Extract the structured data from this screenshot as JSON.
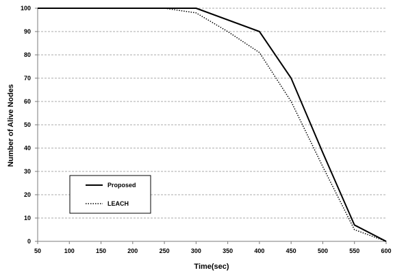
{
  "chart_data": {
    "type": "line",
    "title": "",
    "xlabel": "Time(sec)",
    "ylabel": "Number of Alive Nodes",
    "xlim": [
      50,
      600
    ],
    "ylim": [
      0,
      100
    ],
    "xticks": [
      50,
      100,
      150,
      200,
      250,
      300,
      350,
      400,
      450,
      500,
      550,
      600
    ],
    "yticks": [
      0,
      10,
      20,
      30,
      40,
      50,
      60,
      70,
      80,
      90,
      100
    ],
    "grid": "horizontal dashed",
    "legend_position": "lower-left",
    "series": [
      {
        "name": "Proposed",
        "style": "solid",
        "color": "#000000",
        "points": [
          [
            50,
            100
          ],
          [
            100,
            100
          ],
          [
            150,
            100
          ],
          [
            200,
            100
          ],
          [
            250,
            100
          ],
          [
            300,
            100
          ],
          [
            350,
            95
          ],
          [
            400,
            90
          ],
          [
            450,
            70
          ],
          [
            500,
            38
          ],
          [
            550,
            7
          ],
          [
            600,
            0
          ]
        ]
      },
      {
        "name": "LEACH",
        "style": "dotted",
        "color": "#000000",
        "points": [
          [
            50,
            100
          ],
          [
            100,
            100
          ],
          [
            150,
            100
          ],
          [
            200,
            100
          ],
          [
            250,
            100
          ],
          [
            300,
            98
          ],
          [
            350,
            90
          ],
          [
            400,
            81
          ],
          [
            450,
            60
          ],
          [
            500,
            32
          ],
          [
            550,
            5
          ],
          [
            600,
            0
          ]
        ]
      }
    ]
  }
}
